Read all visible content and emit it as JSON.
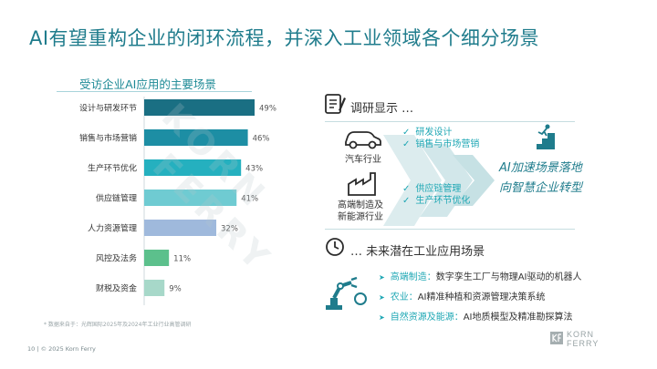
{
  "slide": {
    "title": "AI有望重构企业的闭环流程，并深入工业领域各个细分场景",
    "footnote": "* 数据来自于：光辉国际2025年及2024年工业行业高管调研",
    "footer": "10   |  © 2025 Korn Ferry",
    "watermark": "KORN FERRY",
    "logo_line1": "KORN",
    "logo_line2": "FERRY"
  },
  "chart_data": {
    "type": "bar",
    "orientation": "horizontal",
    "title": "受访企业AI应用的主要场景",
    "categories": [
      "设计与研发环节",
      "销售与市场营销",
      "生产环节优化",
      "供应链管理",
      "人力资源管理",
      "风控及法务",
      "财税及资金"
    ],
    "values": [
      49,
      46,
      43,
      41,
      32,
      11,
      9
    ],
    "value_labels": [
      "49%",
      "46%",
      "43%",
      "41%",
      "32%",
      "11%",
      "9%"
    ],
    "unit": "%",
    "xlim": [
      0,
      55
    ],
    "grid": false,
    "legend": "none",
    "colors": [
      "#1a6f83",
      "#1d8ea4",
      "#25b0bf",
      "#6fcbd2",
      "#9fb9dc",
      "#5cc08c",
      "#a7d8c9"
    ]
  },
  "survey": {
    "header": "调研显示 …",
    "car_label": "汽车行业",
    "car_items": [
      "研发设计",
      "销售与市场营销"
    ],
    "industry_label": "高端制造及新能源行业",
    "industry_items": [
      "供应链管理",
      "生产环节优化"
    ],
    "result_line1": "AI加速场景落地",
    "result_line2": "向智慧企业转型"
  },
  "future": {
    "header": "… 未来潜在工业应用场景",
    "items": [
      {
        "key": "高端制造：",
        "text": "数字孪生工厂与物理AI驱动的机器人"
      },
      {
        "key": "农业：",
        "text": "AI精准种植和资源管理决策系统"
      },
      {
        "key": "自然资源及能源：",
        "text": "AI地质模型及精准勘探算法"
      }
    ]
  },
  "colors": {
    "accent": "#1ea7b4",
    "title": "#1f7c8c"
  }
}
